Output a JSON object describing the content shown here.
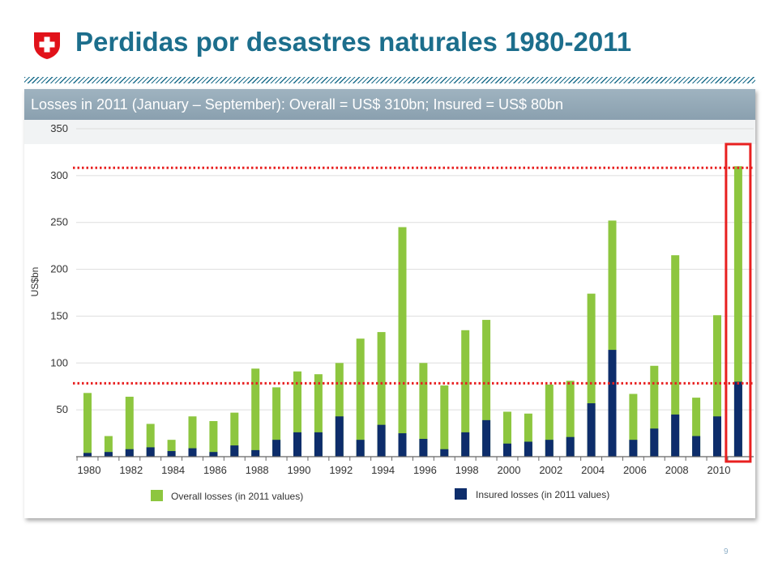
{
  "slide": {
    "title": "Perdidas por desastres naturales 1980-2011",
    "subtitle": "Losses in 2011 (January – September): Overall = US$ 310bn; Insured = US$ 80bn",
    "page_number": "9",
    "logo": "swiss-cross-shield-icon"
  },
  "colors": {
    "title": "#1c6e8c",
    "overall": "#8dc63f",
    "insured": "#0d2d6b",
    "reference_line": "#e82020",
    "highlight_box": "#e82020",
    "banner": "#95aab8"
  },
  "chart_data": {
    "type": "bar",
    "stacked": "overlay",
    "ylabel": "US$bn",
    "ylim": [
      0,
      350
    ],
    "yticks": [
      50,
      100,
      150,
      200,
      250,
      300,
      350
    ],
    "x_tick_labels": [
      "1980",
      "1982",
      "1984",
      "1986",
      "1988",
      "1990",
      "1992",
      "1994",
      "1996",
      "1998",
      "2000",
      "2002",
      "2004",
      "2006",
      "2008",
      "2010"
    ],
    "categories": [
      1980,
      1981,
      1982,
      1983,
      1984,
      1985,
      1986,
      1987,
      1988,
      1989,
      1990,
      1991,
      1992,
      1993,
      1994,
      1995,
      1996,
      1997,
      1998,
      1999,
      2000,
      2001,
      2002,
      2003,
      2004,
      2005,
      2006,
      2007,
      2008,
      2009,
      2010,
      2011
    ],
    "series": [
      {
        "name": "Overall losses (in 2011 values)",
        "color": "#8dc63f",
        "values": [
          68,
          22,
          64,
          35,
          18,
          43,
          38,
          47,
          94,
          74,
          91,
          88,
          100,
          126,
          133,
          245,
          100,
          76,
          135,
          146,
          48,
          46,
          77,
          81,
          174,
          252,
          67,
          97,
          215,
          63,
          151,
          310
        ]
      },
      {
        "name": "Insured losses (in 2011 values)",
        "color": "#0d2d6b",
        "values": [
          4,
          5,
          8,
          10,
          6,
          9,
          5,
          12,
          7,
          18,
          26,
          26,
          43,
          18,
          34,
          25,
          19,
          8,
          26,
          39,
          14,
          16,
          18,
          21,
          57,
          114,
          18,
          30,
          45,
          22,
          43,
          80
        ]
      }
    ],
    "reference_lines": [
      310,
      80
    ],
    "highlight": "2011",
    "grid": true,
    "legend_position": "bottom"
  }
}
